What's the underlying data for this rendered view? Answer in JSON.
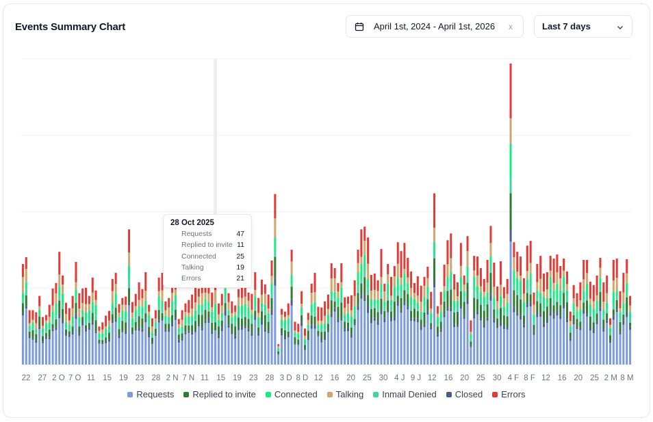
{
  "title": "Events Summary Chart",
  "date_range": {
    "text": "April 1st, 2024 - April 1st, 2026",
    "clear": "x"
  },
  "period": {
    "selected": "Last 7 days"
  },
  "colors": {
    "requests": "#7b9bdf",
    "replied": "#2e7d32",
    "connected": "#17eb84",
    "talking": "#d4a56a",
    "inmail_denied": "#3fd7a0",
    "closed": "#4b5d8a",
    "errors": "#e53935"
  },
  "tooltip": {
    "date": "28 Oct 2025",
    "rows": [
      {
        "label": "Requests",
        "value": "47"
      },
      {
        "label": "Replied to invite",
        "value": "11"
      },
      {
        "label": "Connected",
        "value": "25"
      },
      {
        "label": "Talking",
        "value": "19"
      },
      {
        "label": "Errors",
        "value": "21"
      }
    ]
  },
  "chart_data": {
    "type": "bar",
    "stacked": true,
    "grid": true,
    "legend_position": "bottom",
    "x_tick_labels": [
      "22",
      "27",
      "2 O",
      "7 O",
      "11",
      "15",
      "19",
      "23",
      "28",
      "2 N",
      "7 N",
      "11",
      "15",
      "19",
      "23",
      "28",
      "3 D",
      "8 D",
      "12",
      "16",
      "20",
      "25",
      "30",
      "4 J",
      "9 J",
      "12",
      "16",
      "20",
      "25",
      "30",
      "4 F",
      "8 F",
      "12",
      "16",
      "20",
      "25",
      "2 M",
      "8 M"
    ],
    "series_names": [
      "Requests",
      "Replied to invite",
      "Connected",
      "Talking",
      "Inmail Denied",
      "Closed",
      "Errors"
    ],
    "totals": [
      148,
      158,
      80,
      80,
      77,
      101,
      70,
      73,
      88,
      112,
      120,
      166,
      131,
      91,
      83,
      101,
      151,
      105,
      112,
      113,
      101,
      128,
      109,
      56,
      62,
      72,
      79,
      126,
      135,
      89,
      98,
      100,
      199,
      92,
      104,
      121,
      111,
      136,
      88,
      68,
      80,
      128,
      135,
      93,
      98,
      118,
      123,
      67,
      80,
      90,
      95,
      103,
      115,
      112,
      133,
      133,
      118,
      106,
      132,
      90,
      104,
      153,
      105,
      93,
      87,
      111,
      130,
      115,
      106,
      104,
      136,
      98,
      125,
      118,
      103,
      153,
      251,
      30,
      82,
      78,
      90,
      169,
      63,
      60,
      108,
      53,
      76,
      119,
      135,
      85,
      84,
      93,
      103,
      149,
      142,
      120,
      149,
      99,
      100,
      102,
      124,
      169,
      199,
      203,
      187,
      132,
      134,
      124,
      170,
      119,
      148,
      129,
      145,
      180,
      167,
      179,
      157,
      137,
      120,
      130,
      116,
      129,
      144,
      107,
      252,
      86,
      107,
      147,
      183,
      193,
      133,
      121,
      179,
      131,
      189,
      65,
      160,
      159,
      142,
      126,
      154,
      204,
      150,
      115,
      152,
      114,
      126,
      443,
      180,
      166,
      159,
      127,
      175,
      182,
      106,
      148,
      160,
      134,
      136,
      160,
      156,
      162,
      145,
      156,
      137,
      78,
      117,
      105,
      121,
      154,
      154,
      122,
      117,
      131,
      157,
      121,
      131,
      68,
      154,
      156,
      108,
      135,
      155,
      101
    ],
    "tooltip_index": 58
  },
  "legend": [
    {
      "key": "requests",
      "label": "Requests"
    },
    {
      "key": "replied",
      "label": "Replied to invite"
    },
    {
      "key": "connected",
      "label": "Connected"
    },
    {
      "key": "talking",
      "label": "Talking"
    },
    {
      "key": "inmail_denied",
      "label": "Inmail Denied"
    },
    {
      "key": "closed",
      "label": "Closed"
    },
    {
      "key": "errors",
      "label": "Errors"
    }
  ]
}
